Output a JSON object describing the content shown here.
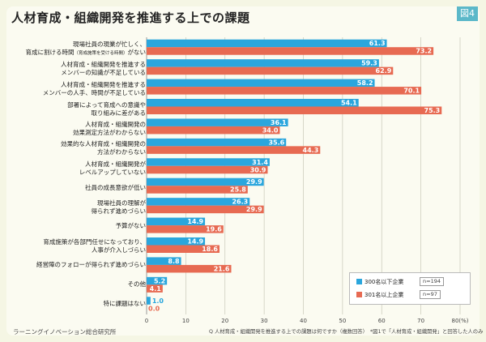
{
  "title": "人材育成・組織開発を推進する上での課題",
  "badge": "図4",
  "footer": "ラーニングイノベーション総合研究所",
  "note": "Q 人材育成・組織開発を推進する上での課題は何ですか（複数回答）　*図1で「人材育成・組織開発」と回答した人のみ",
  "legend": {
    "s1_label": "300名以下企業",
    "s1_n": "n=194",
    "s2_label": "301名以上企業",
    "s2_n": "n=97"
  },
  "colors": {
    "s1": "#2aa6dd",
    "s2": "#e76a52",
    "grid": "#c8c8b8"
  },
  "categories": [
    {
      "l1": "現場社員の現業が忙しく、",
      "l2a": "育成に割ける時間",
      "l2s": "（育成施策を受ける時間）",
      "l2b": "がない"
    },
    {
      "l1": "人材育成・組織開発を推進する",
      "l2": "メンバーの知識が不足している"
    },
    {
      "l1": "人材育成・組織開発を推進する",
      "l2": "メンバーの人手、時間が不足している"
    },
    {
      "l1": "部署によって育成への意識や",
      "l2": "取り組みに差がある"
    },
    {
      "l1": "人材育成・組織開発の",
      "l2": "効果測定方法がわからない"
    },
    {
      "l1": "効果的な人材育成・組織開発の",
      "l2": "方法がわからない"
    },
    {
      "l1": "人材育成・組織開発が",
      "l2": "レベルアップしていない"
    },
    {
      "l1": "社員の成長意欲が低い"
    },
    {
      "l1": "現場社員の理解が",
      "l2": "得られず進めづらい"
    },
    {
      "l1": "予算がない"
    },
    {
      "l1": "育成施策が各部門任せになっており、",
      "l2": "人事が介入しづらい"
    },
    {
      "l1": "経営陣のフォローが得られず進めづらい"
    },
    {
      "l1": "その他"
    },
    {
      "l1": "特に課題はない"
    }
  ],
  "chart_data": {
    "type": "bar",
    "orientation": "horizontal",
    "series": [
      {
        "name": "300名以下企業",
        "values": [
          61.3,
          59.3,
          58.2,
          54.1,
          36.1,
          35.6,
          31.4,
          29.9,
          26.3,
          14.9,
          14.9,
          8.8,
          5.2,
          1.0
        ]
      },
      {
        "name": "301名以上企業",
        "values": [
          73.2,
          62.9,
          70.1,
          75.3,
          34.0,
          44.3,
          30.9,
          25.8,
          29.9,
          19.6,
          18.6,
          21.6,
          4.1,
          0.0
        ]
      }
    ],
    "xlim": [
      0,
      80
    ],
    "xticks": [
      "0",
      "10",
      "20",
      "30",
      "40",
      "50",
      "60",
      "70",
      "80(%)"
    ],
    "grid": true,
    "legend_position": "bottom-right"
  }
}
